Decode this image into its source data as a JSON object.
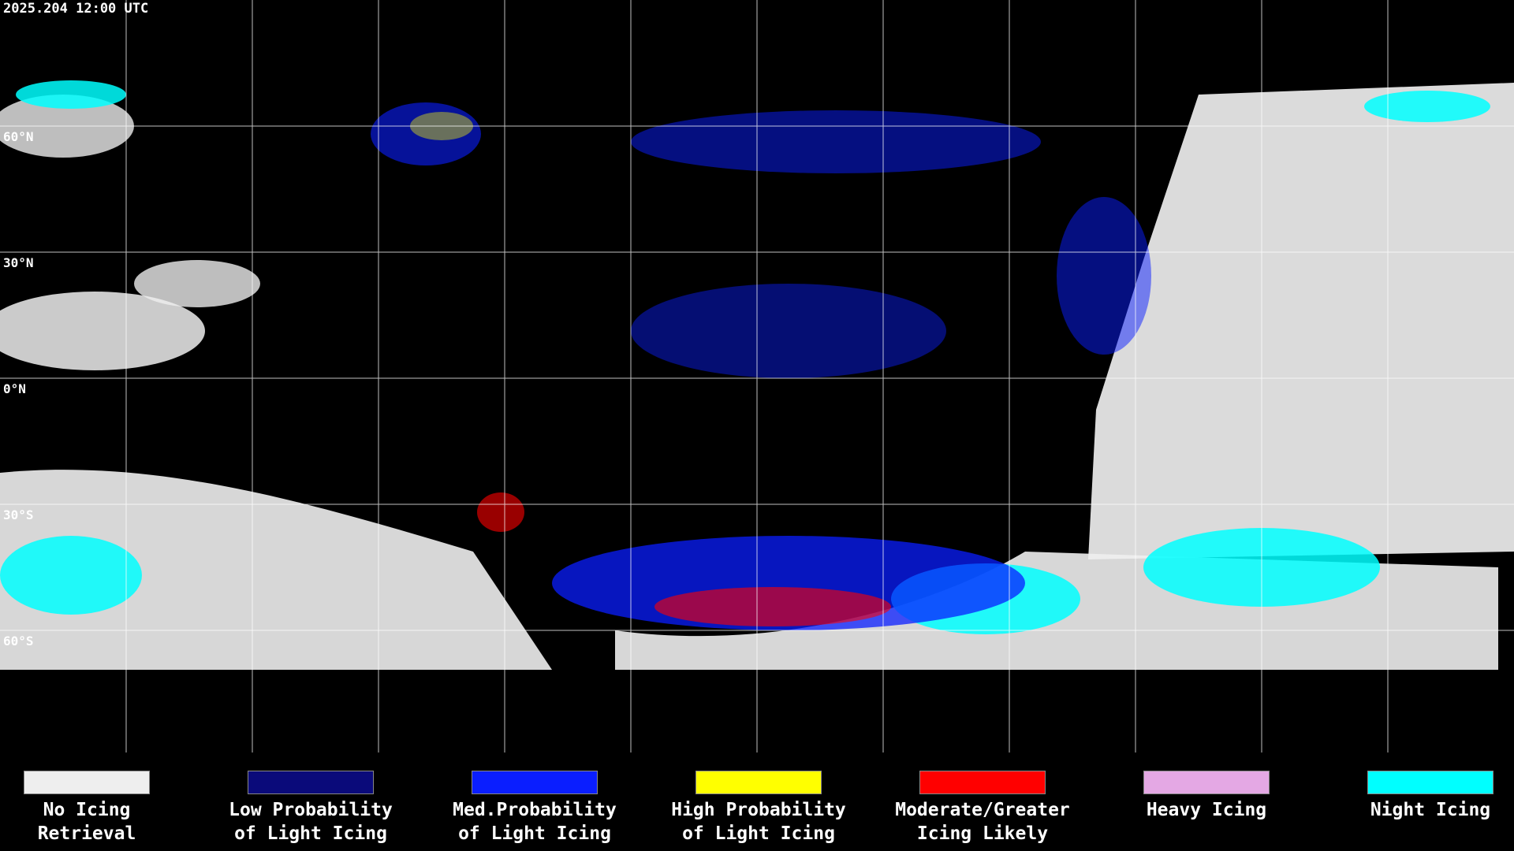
{
  "title": "2025.204 12:00 UTC",
  "latitude_labels": [
    "60°N",
    "30°N",
    "0°N",
    "30°S",
    "60°S"
  ],
  "legend": [
    {
      "color": "#eeeeee",
      "label": [
        "No Icing",
        "Retrieval"
      ]
    },
    {
      "color": "#0a0a7a",
      "label": [
        "Low Probability",
        "of Light Icing"
      ]
    },
    {
      "color": "#0a1eff",
      "label": [
        "Med.Probability",
        "of Light Icing"
      ]
    },
    {
      "color": "#ffff00",
      "label": [
        "High Probability",
        "of Light Icing"
      ]
    },
    {
      "color": "#ff0000",
      "label": [
        "Moderate/Greater",
        "Icing Likely"
      ]
    },
    {
      "color": "#e4a8e4",
      "label": [
        "Heavy Icing"
      ]
    },
    {
      "color": "#00ffff",
      "label": [
        "Night Icing"
      ]
    }
  ]
}
